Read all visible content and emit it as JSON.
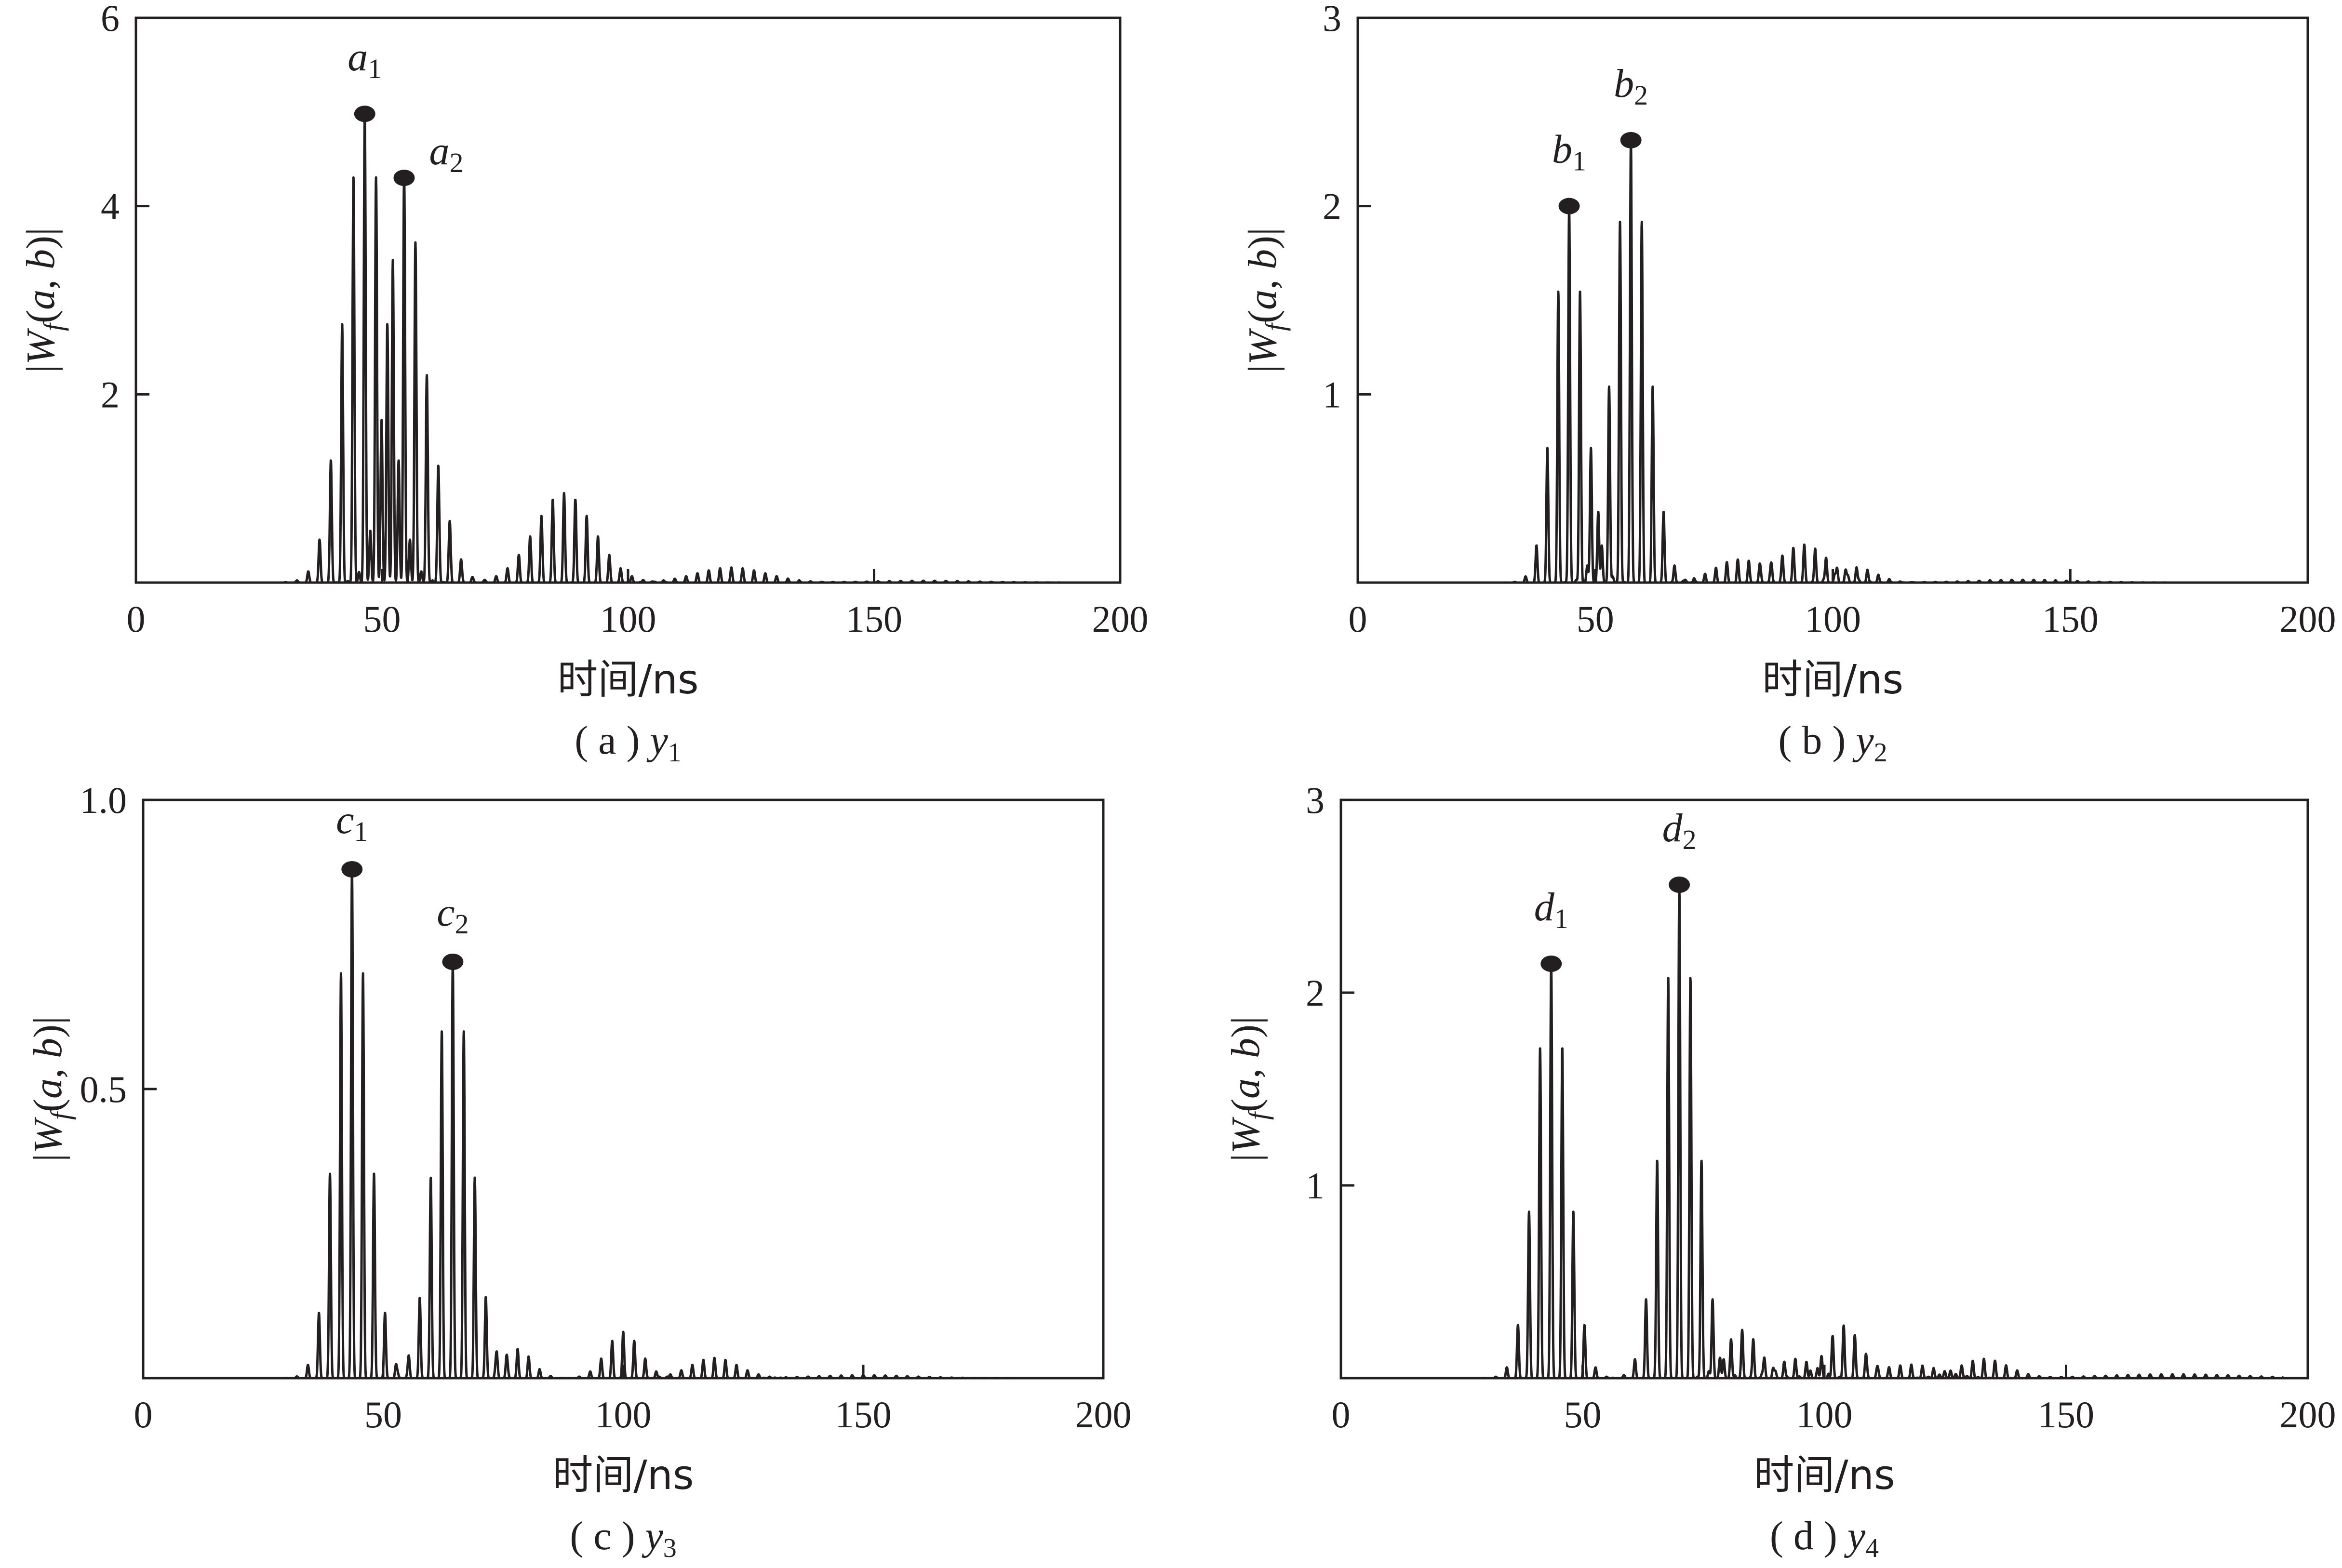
{
  "chart_data": [
    {
      "type": "line",
      "caption": {
        "letter": "a",
        "var": "y",
        "sub": "1"
      },
      "xlabel": "时间/ns",
      "ylabel": {
        "pre": "|",
        "W": "W",
        "f": "f",
        "args": "(a, b)",
        "post": "|"
      },
      "xlim": [
        0,
        200
      ],
      "ylim": [
        0,
        6
      ],
      "xticks": [
        0,
        50,
        100,
        150,
        200
      ],
      "yticks": [
        2,
        4,
        6
      ],
      "ytick_labels": [
        "2",
        "4",
        "6"
      ],
      "bursts": [
        {
          "center": 46.5,
          "amp": 5.0,
          "width": 4.2,
          "period": 2.3
        },
        {
          "center": 54.5,
          "amp": 4.3,
          "width": 3.4,
          "period": 2.3
        },
        {
          "center": 61.5,
          "amp": 0.75,
          "width": 3.0,
          "period": 2.3
        },
        {
          "center": 87,
          "amp": 0.95,
          "width": 6.0,
          "period": 2.3
        },
        {
          "center": 121,
          "amp": 0.16,
          "width": 7.0,
          "period": 2.3
        },
        {
          "center": 160,
          "amp": 0.02,
          "width": 10.0,
          "period": 2.3
        }
      ],
      "peaks": [
        {
          "label": "a",
          "sub": "1",
          "x": 46.5,
          "y": 4.98,
          "label_side": "center"
        },
        {
          "label": "a",
          "sub": "2",
          "x": 54.5,
          "y": 4.3,
          "label_side": "right"
        }
      ]
    },
    {
      "type": "line",
      "caption": {
        "letter": "b",
        "var": "y",
        "sub": "2"
      },
      "xlabel": "时间/ns",
      "ylabel": {
        "pre": "|",
        "W": "W",
        "f": "f",
        "args": "(a, b)",
        "post": "|"
      },
      "xlim": [
        0,
        200
      ],
      "ylim": [
        0,
        3
      ],
      "xticks": [
        0,
        50,
        100,
        150,
        200
      ],
      "yticks": [
        1,
        2,
        3
      ],
      "ytick_labels": [
        "1",
        "2",
        "3"
      ],
      "bursts": [
        {
          "center": 44.5,
          "amp": 2.0,
          "width": 3.2,
          "period": 2.3
        },
        {
          "center": 57.5,
          "amp": 2.35,
          "width": 3.6,
          "period": 2.3
        },
        {
          "center": 80,
          "amp": 0.12,
          "width": 5.0,
          "period": 2.3
        },
        {
          "center": 94,
          "amp": 0.2,
          "width": 5.0,
          "period": 2.3
        },
        {
          "center": 105,
          "amp": 0.08,
          "width": 4.0,
          "period": 2.3
        },
        {
          "center": 140,
          "amp": 0.015,
          "width": 10.0,
          "period": 2.3
        }
      ],
      "peaks": [
        {
          "label": "b",
          "sub": "1",
          "x": 44.5,
          "y": 2.0,
          "label_side": "center"
        },
        {
          "label": "b",
          "sub": "2",
          "x": 57.5,
          "y": 2.35,
          "label_side": "center"
        }
      ]
    },
    {
      "type": "line",
      "caption": {
        "letter": "c",
        "var": "y",
        "sub": "3"
      },
      "xlabel": "时间/ns",
      "ylabel": {
        "pre": "|",
        "W": "W",
        "f": "f",
        "args": "(a, b)",
        "post": "|"
      },
      "xlim": [
        0,
        200
      ],
      "ylim": [
        0,
        1.0
      ],
      "xticks": [
        0,
        50,
        100,
        150,
        200
      ],
      "yticks": [
        0.5,
        1.0
      ],
      "ytick_labels": [
        "0.5",
        "1.0"
      ],
      "bursts": [
        {
          "center": 43.5,
          "amp": 0.88,
          "width": 3.4,
          "period": 2.3
        },
        {
          "center": 64.5,
          "amp": 0.72,
          "width": 3.8,
          "period": 2.3
        },
        {
          "center": 78,
          "amp": 0.05,
          "width": 3.0,
          "period": 2.3
        },
        {
          "center": 100,
          "amp": 0.08,
          "width": 3.5,
          "period": 2.3
        },
        {
          "center": 119,
          "amp": 0.035,
          "width": 5.0,
          "period": 2.3
        },
        {
          "center": 150,
          "amp": 0.005,
          "width": 10.0,
          "period": 2.3
        }
      ],
      "peaks": [
        {
          "label": "c",
          "sub": "1",
          "x": 43.5,
          "y": 0.88,
          "label_side": "center"
        },
        {
          "label": "c",
          "sub": "2",
          "x": 64.5,
          "y": 0.72,
          "label_side": "center"
        }
      ]
    },
    {
      "type": "line",
      "caption": {
        "letter": "d",
        "var": "y",
        "sub": "4"
      },
      "xlabel": "时间/ns",
      "ylabel": {
        "pre": "|",
        "W": "W",
        "f": "f",
        "args": "(a, b)",
        "post": "|"
      },
      "xlim": [
        0,
        200
      ],
      "ylim": [
        0,
        3
      ],
      "xticks": [
        0,
        50,
        100,
        150,
        200
      ],
      "yticks": [
        1,
        2,
        3
      ],
      "ytick_labels": [
        "1",
        "2",
        "3"
      ],
      "bursts": [
        {
          "center": 43.5,
          "amp": 2.15,
          "width": 3.4,
          "period": 2.3
        },
        {
          "center": 70,
          "amp": 2.55,
          "width": 3.6,
          "period": 2.3
        },
        {
          "center": 83,
          "amp": 0.25,
          "width": 3.5,
          "period": 2.3
        },
        {
          "center": 104,
          "amp": 0.27,
          "width": 3.5,
          "period": 2.3
        },
        {
          "center": 94,
          "amp": 0.1,
          "width": 4.0,
          "period": 2.3
        },
        {
          "center": 118,
          "amp": 0.07,
          "width": 6.0,
          "period": 2.3
        },
        {
          "center": 133,
          "amp": 0.1,
          "width": 5.0,
          "period": 2.3
        },
        {
          "center": 172,
          "amp": 0.02,
          "width": 14.0,
          "period": 2.3
        }
      ],
      "peaks": [
        {
          "label": "d",
          "sub": "1",
          "x": 43.5,
          "y": 2.15,
          "label_side": "center"
        },
        {
          "label": "d",
          "sub": "2",
          "x": 70,
          "y": 2.56,
          "label_side": "center"
        }
      ]
    }
  ]
}
